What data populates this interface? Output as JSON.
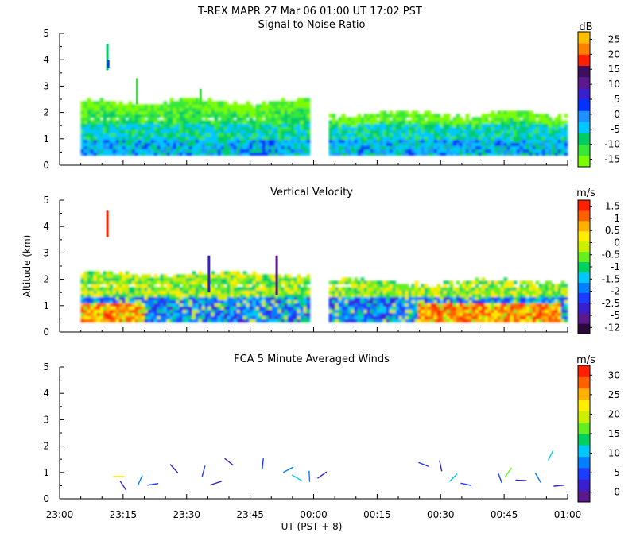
{
  "header": {
    "title": "T-REX   MAPR 27 Mar 06   01:00 UT   17:02   PST"
  },
  "chart_data": [
    {
      "type": "heatmap",
      "title": "Signal to Noise Ratio",
      "ylabel": "",
      "ylim": [
        0,
        5
      ],
      "yticks": [
        "0",
        "1",
        "2",
        "3",
        "4",
        "5"
      ],
      "colorbar": {
        "unit": "dB",
        "labels": [
          "-15",
          "-10",
          "-5",
          "0",
          "5",
          "10",
          "15",
          "20",
          "25"
        ],
        "colors": [
          "#7cfc00",
          "#38e838",
          "#00cc66",
          "#00c8ff",
          "#1e90ff",
          "#0033ff",
          "#3a1fcc",
          "#5b1a8c",
          "#3d0f5c",
          "#ff2000",
          "#ff7f00",
          "#ffc000"
        ]
      },
      "gap_ut": [
        "23:59",
        "00:03"
      ],
      "notes": "Echo layer 0.4–2.4 km; weaker SNR (greens) aloft, higher SNR (blues) near 0.5–1 km"
    },
    {
      "type": "heatmap",
      "title": "Vertical Velocity",
      "ylabel": "Altitude (km)",
      "ylim": [
        0,
        5
      ],
      "yticks": [
        "0",
        "1",
        "2",
        "3",
        "4",
        "5"
      ],
      "colorbar": {
        "unit": "m/s",
        "labels": [
          "-12",
          "-5",
          "-2.5",
          "-2",
          "-1.5",
          "-1",
          "-0.5",
          "0",
          "0.5",
          "1",
          "1.5"
        ],
        "colors": [
          "#2a0a3a",
          "#5b1a8c",
          "#3a1fcc",
          "#1e3cff",
          "#0080ff",
          "#00c8ff",
          "#00d060",
          "#66ee22",
          "#ccee00",
          "#ffee00",
          "#ffb000",
          "#ff6000",
          "#ff2000"
        ]
      },
      "gap_ut": [
        "23:59",
        "00:03"
      ],
      "notes": "Upward motion (reds/yellows) near surface before 00:00 and after 00:30; downdrafts (blues) mid-layer"
    },
    {
      "type": "scatter",
      "title": "FCA 5 Minute Averaged Winds",
      "xlabel": "UT  (PST + 8)",
      "ylim": [
        0,
        5
      ],
      "yticks": [
        "0",
        "1",
        "2",
        "3",
        "4",
        "5"
      ],
      "xticks": [
        "23:00",
        "23:15",
        "23:30",
        "23:45",
        "00:00",
        "00:15",
        "00:30",
        "00:45",
        "01:00"
      ],
      "xrange_min": [
        0,
        120
      ],
      "colorbar": {
        "unit": "m/s",
        "labels": [
          "0",
          "5",
          "10",
          "15",
          "20",
          "25",
          "30"
        ],
        "colors": [
          "#5b1a8c",
          "#3a1fcc",
          "#1e3cff",
          "#0080ff",
          "#00c8ff",
          "#00d060",
          "#66ee22",
          "#ccee00",
          "#ffee00",
          "#ffb000",
          "#ff6000",
          "#ff2000"
        ]
      },
      "wind_barbs": [
        {
          "t": 14,
          "alt": 0.85,
          "speed": 20
        },
        {
          "t": 15,
          "alt": 0.5,
          "speed": 4
        },
        {
          "t": 19,
          "alt": 0.7,
          "speed": 8
        },
        {
          "t": 22,
          "alt": 0.55,
          "speed": 6
        },
        {
          "t": 27,
          "alt": 1.15,
          "speed": 4
        },
        {
          "t": 34,
          "alt": 1.05,
          "speed": 5
        },
        {
          "t": 37,
          "alt": 0.6,
          "speed": 3
        },
        {
          "t": 40,
          "alt": 1.4,
          "speed": 4
        },
        {
          "t": 48,
          "alt": 1.35,
          "speed": 5
        },
        {
          "t": 54,
          "alt": 1.1,
          "speed": 8
        },
        {
          "t": 56,
          "alt": 0.8,
          "speed": 12
        },
        {
          "t": 59,
          "alt": 0.85,
          "speed": 9
        },
        {
          "t": 62,
          "alt": 0.9,
          "speed": 4
        },
        {
          "t": 86,
          "alt": 1.3,
          "speed": 5
        },
        {
          "t": 90,
          "alt": 1.25,
          "speed": 4
        },
        {
          "t": 93,
          "alt": 0.8,
          "speed": 11
        },
        {
          "t": 96,
          "alt": 0.55,
          "speed": 6
        },
        {
          "t": 104,
          "alt": 0.8,
          "speed": 5
        },
        {
          "t": 106,
          "alt": 1.0,
          "speed": 16
        },
        {
          "t": 109,
          "alt": 0.7,
          "speed": 4
        },
        {
          "t": 113,
          "alt": 0.8,
          "speed": 9
        },
        {
          "t": 116,
          "alt": 1.65,
          "speed": 12
        },
        {
          "t": 118,
          "alt": 0.5,
          "speed": 4
        }
      ]
    }
  ]
}
